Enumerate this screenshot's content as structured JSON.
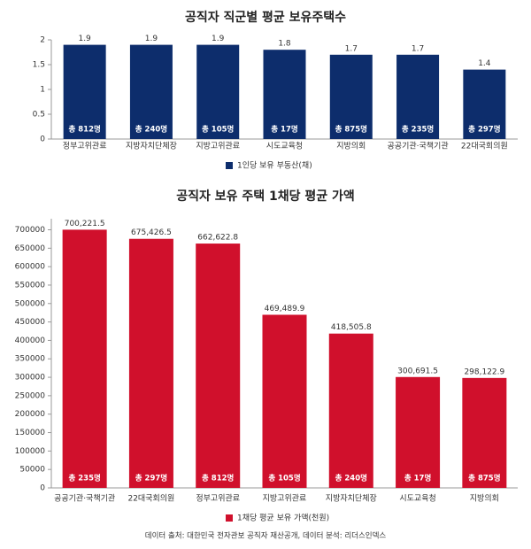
{
  "chart_data": [
    {
      "type": "bar",
      "title": "공직자 직군별 평균 보유주택수",
      "categories": [
        "정부고위관료",
        "지방자치단체장",
        "지방고위관료",
        "시도교육청",
        "지방의회",
        "공공기관·국책기관",
        "22대국회의원"
      ],
      "series": [
        {
          "name": "1인당 보유 부동산(채)",
          "color": "#0d2d6c",
          "values": [
            1.9,
            1.9,
            1.9,
            1.8,
            1.7,
            1.7,
            1.4
          ]
        }
      ],
      "bar_labels": [
        "총 812명",
        "총 240명",
        "총 105명",
        "총 17명",
        "총 875명",
        "총 235명",
        "총 297명"
      ],
      "ylim": [
        0,
        2
      ],
      "yticks": [
        0,
        0.5,
        1,
        1.5,
        2
      ],
      "legend": "bottom"
    },
    {
      "type": "bar",
      "title": "공직자 보유 주택 1채당 평균 가액",
      "categories": [
        "공공기관·국책기관",
        "22대국회의원",
        "정부고위관료",
        "지방고위관료",
        "지방자치단체장",
        "시도교육청",
        "지방의회"
      ],
      "series": [
        {
          "name": "1채당 평균 보유 가액(천원)",
          "color": "#d0102c",
          "values": [
            700221.5,
            675426.5,
            662622.8,
            469489.9,
            418505.8,
            300691.5,
            298122.9
          ],
          "value_labels": [
            "700,221.5",
            "675,426.5",
            "662,622.8",
            "469,489.9",
            "418,505.8",
            "300,691.5",
            "298,122.9"
          ]
        }
      ],
      "bar_labels": [
        "총 235명",
        "총 297명",
        "총 812명",
        "총 105명",
        "총 240명",
        "총 17명",
        "총 875명"
      ],
      "ylim": [
        0,
        730000
      ],
      "yticks": [
        0,
        50000,
        100000,
        150000,
        200000,
        250000,
        300000,
        350000,
        400000,
        450000,
        500000,
        550000,
        600000,
        650000,
        700000
      ],
      "legend": "bottom"
    }
  ],
  "footer": "데이터 출처: 대한민국 전자관보 공직자 재산공개, 데이터 분석: 리더스인덱스"
}
